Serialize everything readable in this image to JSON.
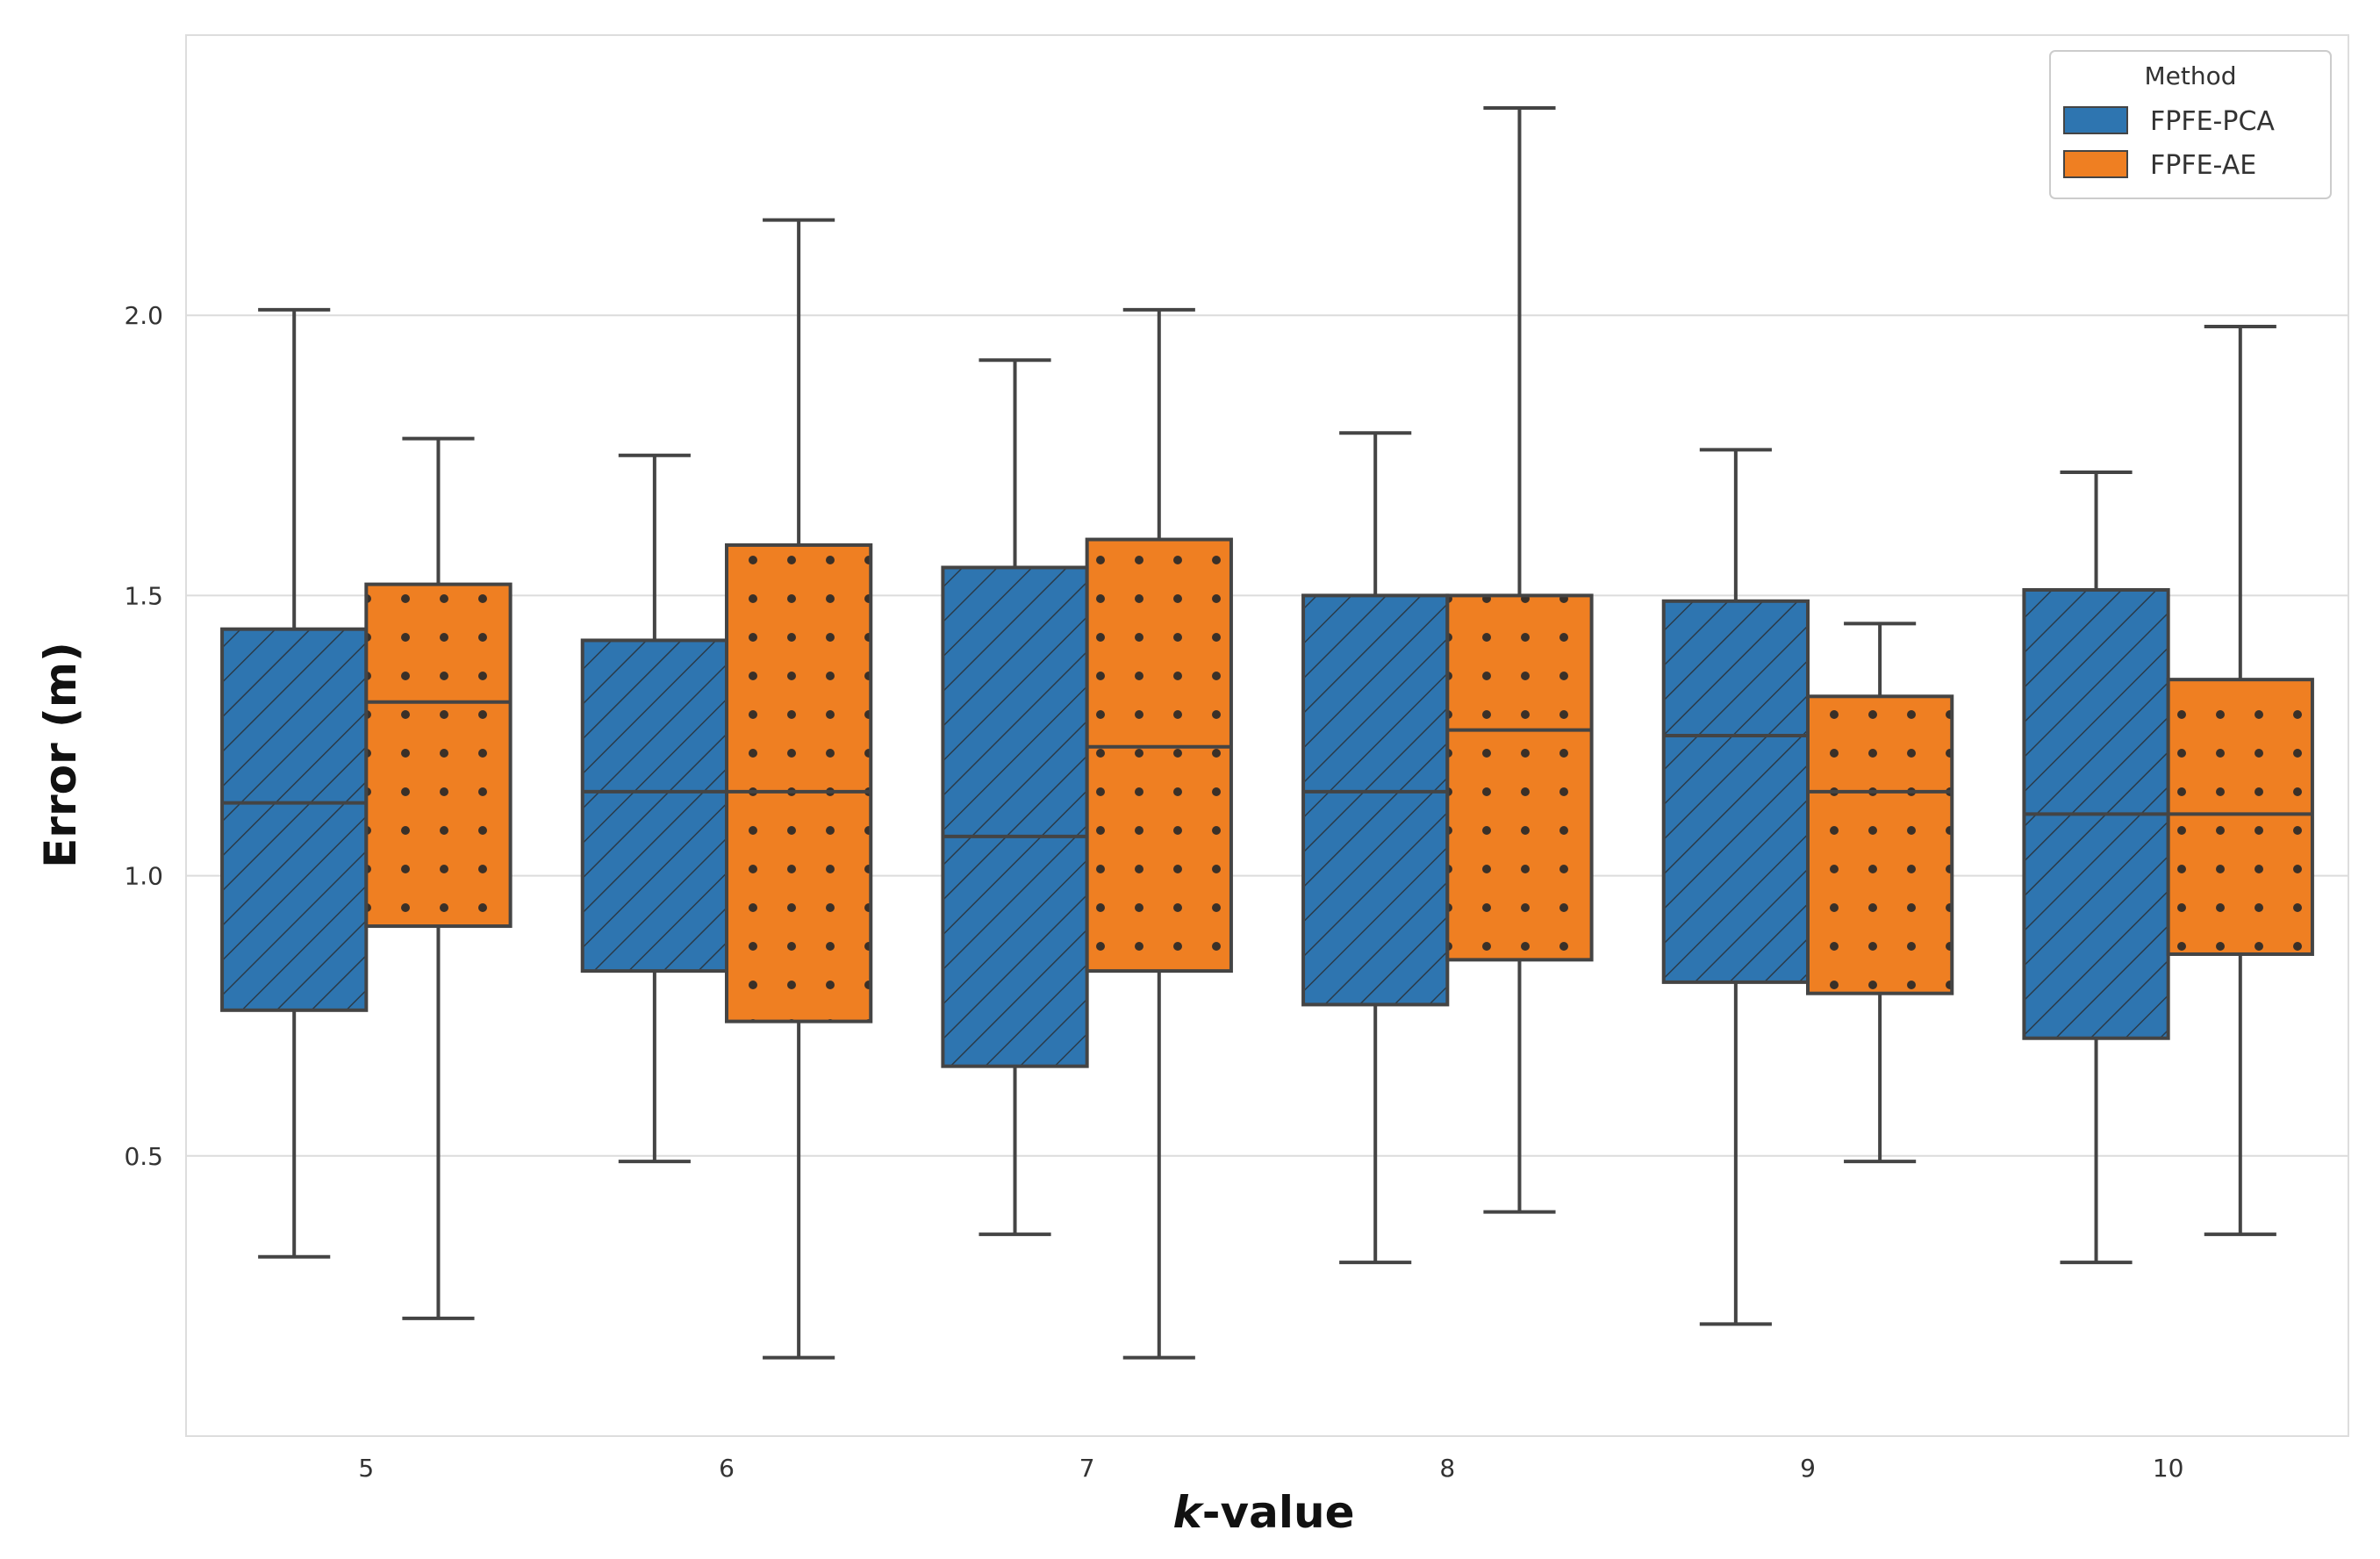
{
  "chart_data": {
    "type": "boxplot",
    "xlabel_italic": "k",
    "xlabel_rest": "-value",
    "ylabel": "Error (m)",
    "ylim": [
      0.0,
      2.5
    ],
    "yticks": [
      "0.5",
      "1.0",
      "1.5",
      "2.0"
    ],
    "ytick_values": [
      0.5,
      1.0,
      1.5,
      2.0
    ],
    "categories": [
      "5",
      "6",
      "7",
      "8",
      "9",
      "10"
    ],
    "grid": "horizontal",
    "legend": {
      "title": "Method",
      "position": "top-right"
    },
    "series": [
      {
        "name": "FPFE-PCA",
        "color": "#2e75b0",
        "hatch": "diagonal",
        "boxes": [
          {
            "min": 0.32,
            "q1": 0.76,
            "median": 1.13,
            "q3": 1.44,
            "max": 2.01
          },
          {
            "min": 0.49,
            "q1": 0.83,
            "median": 1.15,
            "q3": 1.42,
            "max": 1.75
          },
          {
            "min": 0.36,
            "q1": 0.66,
            "median": 1.07,
            "q3": 1.55,
            "max": 1.92
          },
          {
            "min": 0.31,
            "q1": 0.77,
            "median": 1.15,
            "q3": 1.5,
            "max": 1.79
          },
          {
            "min": 0.2,
            "q1": 0.81,
            "median": 1.25,
            "q3": 1.49,
            "max": 1.76
          },
          {
            "min": 0.31,
            "q1": 0.71,
            "median": 1.11,
            "q3": 1.51,
            "max": 1.72
          }
        ]
      },
      {
        "name": "FPFE-AE",
        "color": "#ef7f22",
        "hatch": "dots",
        "boxes": [
          {
            "min": 0.21,
            "q1": 0.91,
            "median": 1.31,
            "q3": 1.52,
            "max": 1.78
          },
          {
            "min": 0.14,
            "q1": 0.74,
            "median": 1.15,
            "q3": 1.59,
            "max": 2.17
          },
          {
            "min": 0.14,
            "q1": 0.83,
            "median": 1.23,
            "q3": 1.6,
            "max": 2.01
          },
          {
            "min": 0.4,
            "q1": 0.85,
            "median": 1.26,
            "q3": 1.5,
            "max": 2.37
          },
          {
            "min": 0.49,
            "q1": 0.79,
            "median": 1.15,
            "q3": 1.32,
            "max": 1.45
          },
          {
            "min": 0.36,
            "q1": 0.86,
            "median": 1.11,
            "q3": 1.35,
            "max": 1.98
          }
        ]
      }
    ]
  }
}
